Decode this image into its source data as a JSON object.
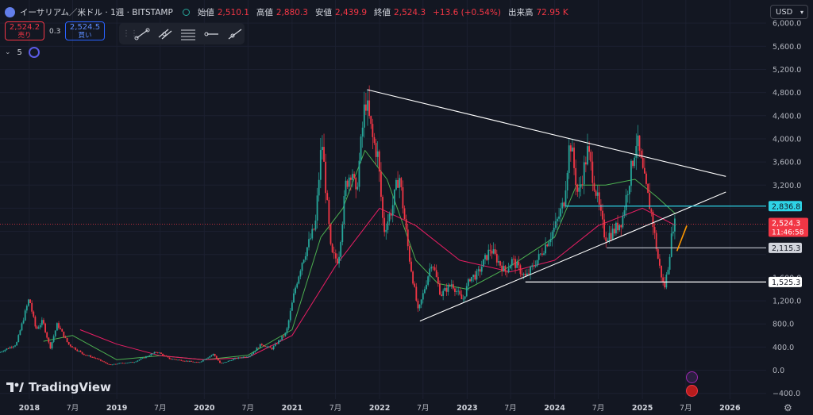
{
  "header": {
    "symbol": "イーサリアム／米ドル · 1週 · BITSTAMP",
    "open_label": "始値",
    "open": "2,510.1",
    "high_label": "高値",
    "high": "2,880.3",
    "low_label": "安値",
    "low": "2,439.9",
    "close_label": "終値",
    "close": "2,524.3",
    "change": "+13.6 (+0.54%)",
    "volume_label": "出来高",
    "volume": "72.95 K"
  },
  "trade": {
    "sell_price": "2,524.2",
    "sell_label": "売り",
    "spread": "0.3",
    "buy_price": "2,524.5",
    "buy_label": "買い"
  },
  "indicator": {
    "count": "5"
  },
  "currency": "USD",
  "brand": "TradingView",
  "colors": {
    "background": "#131722",
    "up": "#26a69a",
    "down": "#f23645",
    "ma_short": "#4caf50",
    "ma_long": "#e91e63",
    "trendline": "#ffffff",
    "level_blue": "#2ed3e6",
    "level_price": "#f23645",
    "arrow": "#ff9800"
  },
  "chart_data": {
    "type": "candlestick",
    "title": "イーサリアム／米ドル · 1週 · BITSTAMP",
    "x_range": [
      "2017-09-01",
      "2026-06-01"
    ],
    "ylim": [
      -500,
      6400
    ],
    "y_ticks": [
      6000,
      5600,
      5200,
      4800,
      4400,
      4000,
      3600,
      3200,
      2800,
      2400,
      2000,
      1600,
      1200,
      800,
      400,
      0,
      -400
    ],
    "y_tick_labels": [
      "6,000.0",
      "5,600.0",
      "5,200.0",
      "4,800.0",
      "4,400.0",
      "4,000.0",
      "3,600.0",
      "3,200.0",
      "",
      "",
      "",
      "1,600.0",
      "1,200.0",
      "800.0",
      "400.0",
      "0.0",
      "−400.0"
    ],
    "x_ticks": [
      "2018-01-01",
      "2018-07-01",
      "2019-01-01",
      "2019-07-01",
      "2020-01-01",
      "2020-07-01",
      "2021-01-01",
      "2021-07-01",
      "2022-01-01",
      "2022-07-01",
      "2023-01-01",
      "2023-07-01",
      "2024-01-01",
      "2024-07-01",
      "2025-01-01",
      "2025-07-01",
      "2026-01-01"
    ],
    "x_tick_labels": [
      "2018",
      "7月",
      "2019",
      "7月",
      "2020",
      "7月",
      "2021",
      "7月",
      "2022",
      "7月",
      "2023",
      "7月",
      "2024",
      "7月",
      "2025",
      "7月",
      "2026"
    ],
    "price_path": [
      [
        "2017-09-01",
        300
      ],
      [
        "2017-11-15",
        450
      ],
      [
        "2018-01-08",
        1250
      ],
      [
        "2018-01-20",
        1000
      ],
      [
        "2018-02-05",
        700
      ],
      [
        "2018-03-05",
        850
      ],
      [
        "2018-04-05",
        380
      ],
      [
        "2018-05-05",
        800
      ],
      [
        "2018-06-20",
        450
      ],
      [
        "2018-08-20",
        280
      ],
      [
        "2018-10-15",
        200
      ],
      [
        "2018-12-10",
        90
      ],
      [
        "2019-01-20",
        120
      ],
      [
        "2019-03-20",
        140
      ],
      [
        "2019-06-25",
        320
      ],
      [
        "2019-08-15",
        200
      ],
      [
        "2019-12-15",
        130
      ],
      [
        "2020-02-15",
        280
      ],
      [
        "2020-03-16",
        110
      ],
      [
        "2020-05-15",
        200
      ],
      [
        "2020-07-15",
        250
      ],
      [
        "2020-09-01",
        450
      ],
      [
        "2020-10-15",
        370
      ],
      [
        "2020-12-15",
        650
      ],
      [
        "2021-01-20",
        1400
      ],
      [
        "2021-02-20",
        1900
      ],
      [
        "2021-04-15",
        2500
      ],
      [
        "2021-05-12",
        4000
      ],
      [
        "2021-06-20",
        2000
      ],
      [
        "2021-07-20",
        1900
      ],
      [
        "2021-08-20",
        3200
      ],
      [
        "2021-09-15",
        3500
      ],
      [
        "2021-10-01",
        3000
      ],
      [
        "2021-11-10",
        4700
      ],
      [
        "2021-12-10",
        4000
      ],
      [
        "2022-01-01",
        3700
      ],
      [
        "2022-01-25",
        2400
      ],
      [
        "2022-03-01",
        2800
      ],
      [
        "2022-03-30",
        3400
      ],
      [
        "2022-05-10",
        2000
      ],
      [
        "2022-06-18",
        1000
      ],
      [
        "2022-07-20",
        1500
      ],
      [
        "2022-08-14",
        1900
      ],
      [
        "2022-09-20",
        1300
      ],
      [
        "2022-11-05",
        1500
      ],
      [
        "2022-12-20",
        1200
      ],
      [
        "2023-01-20",
        1600
      ],
      [
        "2023-02-20",
        1650
      ],
      [
        "2023-04-15",
        2100
      ],
      [
        "2023-06-15",
        1700
      ],
      [
        "2023-07-15",
        1900
      ],
      [
        "2023-09-10",
        1600
      ],
      [
        "2023-11-10",
        2000
      ],
      [
        "2024-01-12",
        2500
      ],
      [
        "2024-02-15",
        2900
      ],
      [
        "2024-03-12",
        4000
      ],
      [
        "2024-04-15",
        3000
      ],
      [
        "2024-05-25",
        3800
      ],
      [
        "2024-08-05",
        2300
      ],
      [
        "2024-09-10",
        2400
      ],
      [
        "2024-10-15",
        2600
      ],
      [
        "2024-12-15",
        4000
      ],
      [
        "2025-01-15",
        3300
      ],
      [
        "2025-02-15",
        2700
      ],
      [
        "2025-03-15",
        1900
      ],
      [
        "2025-04-09",
        1400
      ],
      [
        "2025-04-25",
        1800
      ],
      [
        "2025-05-15",
        2500
      ],
      [
        "2025-05-20",
        2524.3
      ]
    ],
    "series": [
      {
        "type": "moving_average",
        "color": "#4caf50",
        "points": [
          [
            "2018-03-01",
            500
          ],
          [
            "2018-07-01",
            600
          ],
          [
            "2019-01-01",
            180
          ],
          [
            "2019-07-01",
            250
          ],
          [
            "2020-01-01",
            180
          ],
          [
            "2020-07-01",
            260
          ],
          [
            "2021-01-01",
            700
          ],
          [
            "2021-05-01",
            2300
          ],
          [
            "2021-08-01",
            2800
          ],
          [
            "2021-11-01",
            3800
          ],
          [
            "2022-02-01",
            3300
          ],
          [
            "2022-06-01",
            1900
          ],
          [
            "2022-09-01",
            1500
          ],
          [
            "2023-01-01",
            1400
          ],
          [
            "2023-07-01",
            1800
          ],
          [
            "2024-01-01",
            2300
          ],
          [
            "2024-04-01",
            3200
          ],
          [
            "2024-08-01",
            3200
          ],
          [
            "2024-12-01",
            3300
          ],
          [
            "2025-03-01",
            3000
          ],
          [
            "2025-05-20",
            2700
          ]
        ]
      },
      {
        "type": "moving_average",
        "color": "#e91e63",
        "points": [
          [
            "2018-08-01",
            700
          ],
          [
            "2019-01-01",
            450
          ],
          [
            "2019-07-01",
            250
          ],
          [
            "2020-01-01",
            180
          ],
          [
            "2020-07-01",
            220
          ],
          [
            "2021-01-01",
            600
          ],
          [
            "2021-07-01",
            1800
          ],
          [
            "2022-01-01",
            2800
          ],
          [
            "2022-06-01",
            2500
          ],
          [
            "2022-12-01",
            1900
          ],
          [
            "2023-07-01",
            1700
          ],
          [
            "2024-01-01",
            1900
          ],
          [
            "2024-07-01",
            2500
          ],
          [
            "2025-01-01",
            2800
          ],
          [
            "2025-05-20",
            2500
          ]
        ]
      }
    ],
    "trendlines": [
      {
        "from": [
          "2021-11-10",
          4850
        ],
        "to": [
          "2025-12-15",
          3350
        ]
      },
      {
        "from": [
          "2022-06-18",
          850
        ],
        "to": [
          "2025-12-15",
          3080
        ]
      }
    ],
    "levels": [
      {
        "value": 2836.8,
        "label": "2,836.8",
        "from": "2024-02-15"
      },
      {
        "value": 2115.3,
        "label": "2,115.3",
        "from": "2024-08-05"
      },
      {
        "value": 1525.3,
        "label": "1,525.3",
        "from": "2023-09-01"
      }
    ],
    "last_price": {
      "value": 2524.3,
      "label": "2,524.3",
      "countdown": "11:46:58"
    },
    "arrow": {
      "from": [
        "2025-05-25",
        2060
      ],
      "to": [
        "2025-07-05",
        2500
      ]
    }
  }
}
